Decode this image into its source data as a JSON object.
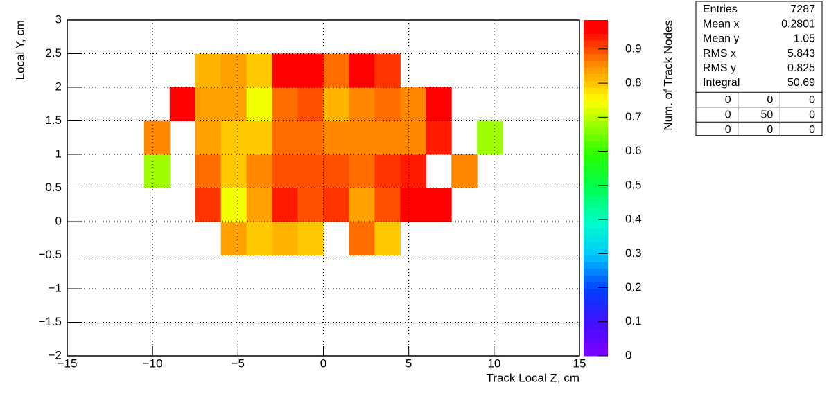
{
  "chart_data": {
    "type": "heatmap",
    "xlabel": "Track Local Z, cm",
    "ylabel": "Local Y, cm",
    "zlabel": "Num. of Track Nodes",
    "xbins": [
      -15,
      -13.5,
      -12,
      -10.5,
      -9,
      -7.5,
      -6,
      -4.5,
      -3,
      -1.5,
      0,
      1.5,
      3,
      4.5,
      6,
      7.5,
      9,
      10.5,
      12,
      13.5,
      15
    ],
    "ybins": [
      -2,
      -1.5,
      -1,
      -0.5,
      0,
      0.5,
      1,
      1.5,
      2,
      2.5,
      3
    ],
    "z": [
      [
        null,
        null,
        null,
        null,
        null,
        null,
        null,
        null,
        null,
        null,
        null,
        null,
        null,
        null,
        null,
        null,
        null,
        null,
        null,
        null
      ],
      [
        null,
        null,
        null,
        null,
        null,
        null,
        null,
        null,
        null,
        null,
        null,
        null,
        null,
        null,
        null,
        null,
        null,
        null,
        null,
        null
      ],
      [
        null,
        null,
        null,
        null,
        null,
        null,
        null,
        null,
        null,
        null,
        null,
        null,
        null,
        null,
        null,
        null,
        null,
        null,
        null,
        null
      ],
      [
        null,
        null,
        null,
        null,
        null,
        null,
        0.83,
        0.79,
        0.82,
        0.8,
        null,
        0.88,
        0.79,
        null,
        null,
        null,
        null,
        null,
        null,
        null
      ],
      [
        null,
        null,
        null,
        null,
        null,
        0.91,
        0.74,
        0.83,
        0.93,
        0.9,
        0.91,
        0.84,
        0.9,
        0.97,
        0.95,
        null,
        null,
        null,
        null,
        null
      ],
      [
        null,
        null,
        null,
        0.67,
        null,
        0.88,
        0.8,
        0.86,
        0.9,
        0.9,
        0.9,
        0.88,
        0.92,
        0.94,
        null,
        0.85,
        null,
        null,
        null,
        null
      ],
      [
        null,
        null,
        null,
        0.85,
        null,
        0.83,
        0.8,
        0.8,
        0.88,
        0.88,
        0.86,
        0.86,
        0.86,
        0.86,
        0.93,
        null,
        0.67,
        null,
        null,
        null
      ],
      [
        null,
        null,
        null,
        null,
        0.96,
        0.83,
        0.83,
        0.74,
        0.88,
        0.9,
        0.82,
        0.86,
        0.88,
        0.86,
        0.95,
        null,
        null,
        null,
        null,
        null
      ],
      [
        null,
        null,
        null,
        null,
        null,
        0.81,
        0.83,
        0.79,
        0.95,
        0.95,
        0.88,
        0.97,
        0.91,
        null,
        null,
        null,
        null,
        null,
        null,
        null
      ],
      [
        null,
        null,
        null,
        null,
        null,
        null,
        null,
        null,
        null,
        null,
        null,
        null,
        null,
        null,
        null,
        null,
        null,
        null,
        null,
        null
      ]
    ],
    "xlim": [
      -15,
      15
    ],
    "ylim": [
      -2,
      3
    ],
    "zlim": [
      0,
      0.985
    ],
    "xticks": [
      {
        "value": -15,
        "label": "−15"
      },
      {
        "value": -10,
        "label": "−10"
      },
      {
        "value": -5,
        "label": "−5"
      },
      0,
      5,
      10,
      15
    ],
    "yticks": [
      {
        "value": -2,
        "label": "−2"
      },
      {
        "value": -1.5,
        "label": "−1.5"
      },
      {
        "value": -1,
        "label": "−1"
      },
      {
        "value": -0.5,
        "label": "−0.5"
      },
      0,
      0.5,
      1,
      1.5,
      2,
      2.5,
      3
    ],
    "zticks": [
      0,
      0.1,
      0.2,
      0.3,
      0.4,
      0.5,
      0.6,
      0.7,
      0.8,
      0.9
    ],
    "grid": true
  },
  "stats_box": {
    "rows": [
      {
        "label": "Entries",
        "value": 7287
      },
      {
        "label": "Mean x",
        "value": 0.2801
      },
      {
        "label": "Mean y",
        "value": 1.05
      },
      {
        "label": "RMS x",
        "value": 5.843
      },
      {
        "label": "RMS y",
        "value": 0.825
      },
      {
        "label": "Integral",
        "value": 50.69
      }
    ],
    "overflow": [
      [
        0,
        0,
        0
      ],
      [
        0,
        50,
        0
      ],
      [
        0,
        0,
        0
      ]
    ]
  }
}
